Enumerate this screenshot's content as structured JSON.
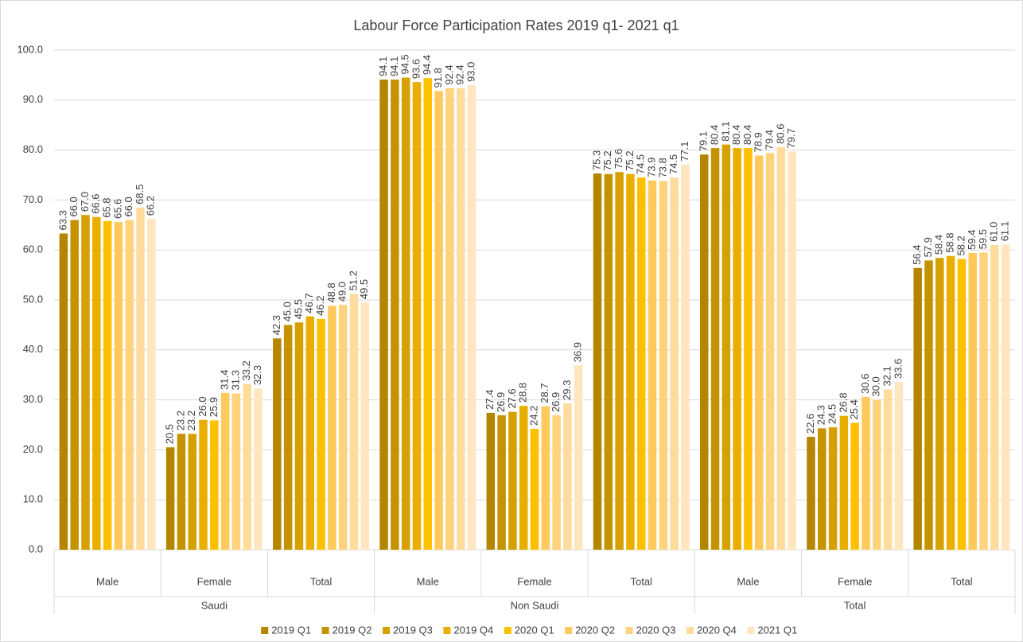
{
  "chart_data": {
    "type": "bar",
    "title": "Labour Force Participation Rates 2019 q1- 2021 q1",
    "groups": [
      {
        "name": "Saudi",
        "categories": [
          "Male",
          "Female",
          "Total"
        ]
      },
      {
        "name": "Non Saudi",
        "categories": [
          "Male",
          "Female",
          "Total"
        ]
      },
      {
        "name": "Total",
        "categories": [
          "Male",
          "Female",
          "Total"
        ]
      }
    ],
    "ylim": [
      0,
      100
    ],
    "yticks": [
      {
        "value": 0,
        "label": "0.0"
      },
      {
        "value": 10,
        "label": "10.0"
      },
      {
        "value": 20,
        "label": "20.0"
      },
      {
        "value": 30,
        "label": "30.0"
      },
      {
        "value": 40,
        "label": "40.0"
      },
      {
        "value": 50,
        "label": "50.0"
      },
      {
        "value": 60,
        "label": "60.0"
      },
      {
        "value": 70,
        "label": "70.0"
      },
      {
        "value": 80,
        "label": "80.0"
      },
      {
        "value": 90,
        "label": "90.0"
      },
      {
        "value": 100,
        "label": "100.0"
      }
    ],
    "grid": true,
    "legend": "bottom",
    "series": [
      {
        "name": "2019 Q1",
        "color": "#B48600",
        "values": [
          63.3,
          20.5,
          42.3,
          94.1,
          27.4,
          75.3,
          79.1,
          22.6,
          56.4
        ],
        "value_labels": [
          "63.3",
          "20.5",
          "42.3",
          "94.1",
          "27.4",
          "75.3",
          "79.1",
          "22.6",
          "56.4"
        ]
      },
      {
        "name": "2019 Q2",
        "color": "#C59200",
        "values": [
          66.0,
          23.2,
          45.0,
          94.1,
          26.9,
          75.2,
          80.4,
          24.3,
          57.9
        ],
        "value_labels": [
          "66.0",
          "23.2",
          "45.0",
          "94.1",
          "26.9",
          "75.2",
          "80.4",
          "24.3",
          "57.9"
        ]
      },
      {
        "name": "2019 Q3",
        "color": "#D6A000",
        "values": [
          67.0,
          23.2,
          45.5,
          94.5,
          27.6,
          75.6,
          81.1,
          24.5,
          58.4
        ],
        "value_labels": [
          "67.0",
          "23.2",
          "45.5",
          "94.5",
          "27.6",
          "75.6",
          "81.1",
          "24.5",
          "58.4"
        ]
      },
      {
        "name": "2019 Q4",
        "color": "#E9AE00",
        "values": [
          66.6,
          26.0,
          46.7,
          93.6,
          28.8,
          75.2,
          80.4,
          26.8,
          58.8
        ],
        "value_labels": [
          "66.6",
          "26.0",
          "46.7",
          "93.6",
          "28.8",
          "75.2",
          "80.4",
          "26.8",
          "58.8"
        ]
      },
      {
        "name": "2020 Q1",
        "color": "#FFC000",
        "values": [
          65.8,
          25.9,
          46.2,
          94.4,
          24.2,
          74.5,
          80.4,
          25.4,
          58.2
        ],
        "value_labels": [
          "65.8",
          "25.9",
          "46.2",
          "94.4",
          "24.2",
          "74.5",
          "80.4",
          "25.4",
          "58.2"
        ]
      },
      {
        "name": "2020 Q2",
        "color": "#FFC95C",
        "values": [
          65.6,
          31.4,
          48.8,
          91.8,
          28.7,
          73.9,
          78.9,
          30.6,
          59.4
        ],
        "value_labels": [
          "65.6",
          "31.4",
          "48.8",
          "91.8",
          "28.7",
          "73.9",
          "78.9",
          "30.6",
          "59.4"
        ]
      },
      {
        "name": "2020 Q3",
        "color": "#FFD27C",
        "values": [
          66.0,
          31.3,
          49.0,
          92.4,
          26.9,
          73.8,
          79.4,
          30.0,
          59.5
        ],
        "value_labels": [
          "66.0",
          "31.3",
          "49.0",
          "92.4",
          "26.9",
          "73.8",
          "79.4",
          "30.0",
          "59.5"
        ]
      },
      {
        "name": "2020 Q4",
        "color": "#FFDB9C",
        "values": [
          68.5,
          33.2,
          51.2,
          92.4,
          29.3,
          74.5,
          80.6,
          32.1,
          61.0
        ],
        "value_labels": [
          "68.5",
          "33.2",
          "51.2",
          "92.4",
          "29.3",
          "74.5",
          "80.6",
          "32.1",
          "61.0"
        ]
      },
      {
        "name": "2021 Q1",
        "color": "#FFE6BF",
        "values": [
          66.2,
          32.3,
          49.5,
          93.0,
          36.9,
          77.1,
          79.7,
          33.6,
          61.1
        ],
        "value_labels": [
          "66.2",
          "32.3",
          "49.5",
          "93.0",
          "36.9",
          "77.1",
          "79.7",
          "33.6",
          "61.1"
        ]
      }
    ]
  }
}
